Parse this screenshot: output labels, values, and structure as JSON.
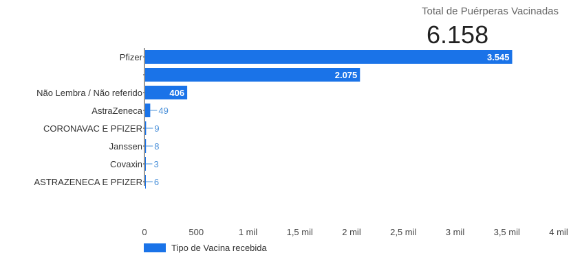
{
  "kpi": {
    "label": "Total de Puérperas Vacinadas",
    "value": "6.158"
  },
  "colors": {
    "bar": "#1a73e8",
    "axis": "#333333",
    "inside_label": "#ffffff",
    "outside_label": "#4a90d9"
  },
  "chart_data": {
    "type": "bar",
    "orientation": "horizontal",
    "categories": [
      "Pfizer",
      "",
      "Não Lembra / Não referido",
      "AstraZeneca",
      "CORONAVAC E PFIZER",
      "Janssen",
      "Covaxin",
      "ASTRAZENECA E PFIZER"
    ],
    "values": [
      3545,
      2075,
      406,
      49,
      9,
      8,
      3,
      6
    ],
    "value_labels": [
      "3.545",
      "2.075",
      "406",
      "49",
      "9",
      "8",
      "3",
      "6"
    ],
    "xlim": [
      0,
      4000
    ],
    "x_ticks": [
      0,
      500,
      1000,
      1500,
      2000,
      2500,
      3000,
      3500,
      4000
    ],
    "x_tick_labels": [
      "0",
      "500",
      "1 mil",
      "1,5 mil",
      "2 mil",
      "2,5 mil",
      "3 mil",
      "3,5 mil",
      "4 mil"
    ],
    "legend": [
      "Tipo de Vacina recebida"
    ],
    "legend_position": "bottom-left",
    "grid": false
  }
}
